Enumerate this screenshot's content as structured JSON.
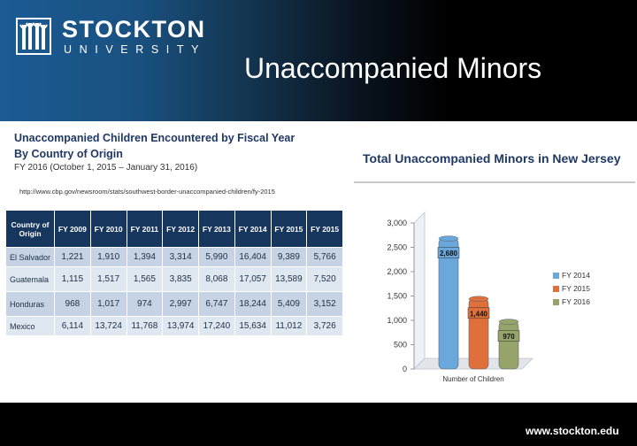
{
  "header": {
    "logo_name": "STOCKTON",
    "logo_sub": "UNIVERSITY",
    "title": "Unaccompanied Minors"
  },
  "table": {
    "heading": "Unaccompanied Children Encountered by Fiscal Year",
    "subheading": "By Country of Origin",
    "period": "FY 2016 (October 1, 2015 – January 31, 2016)",
    "source": "http://www.cbp.gov/newsroom/stats/southwest-border-unaccompanied-children/fy-2015",
    "country_header": "Country of Origin",
    "headers": [
      "FY 2009",
      "FY 2010",
      "FY 2011",
      "FY 2012",
      "FY 2013",
      "FY 2014",
      "FY 2015",
      "FY 2015"
    ],
    "rows": [
      {
        "country": "El Salvador",
        "values": [
          "1,221",
          "1,910",
          "1,394",
          "3,314",
          "5,990",
          "16,404",
          "9,389",
          "5,766"
        ]
      },
      {
        "country": "Guatemala",
        "values": [
          "1,115",
          "1,517",
          "1,565",
          "3,835",
          "8,068",
          "17,057",
          "13,589",
          "7,520"
        ]
      },
      {
        "country": "Honduras",
        "values": [
          "968",
          "1,017",
          "974",
          "2,997",
          "6,747",
          "18,244",
          "5,409",
          "3,152"
        ]
      },
      {
        "country": "Mexico",
        "values": [
          "6,114",
          "13,724",
          "11,768",
          "13,974",
          "17,240",
          "15,634",
          "11,012",
          "3,726"
        ]
      }
    ]
  },
  "chart_data": {
    "type": "bar",
    "title": "Total Unaccompanied Minors in New Jersey",
    "categories": [
      "Number of Children"
    ],
    "xlabel": "Number of Children",
    "ylabel": "",
    "ylim": [
      0,
      3000
    ],
    "yticks": [
      0,
      500,
      1000,
      1500,
      2000,
      2500,
      3000
    ],
    "ytick_labels": [
      "0",
      "500",
      "1,000",
      "1,500",
      "2,000",
      "2,500",
      "3,000"
    ],
    "series": [
      {
        "name": "FY 2014",
        "values": [
          2680
        ],
        "label": "2,680",
        "color": "#6aa7da"
      },
      {
        "name": "FY 2015",
        "values": [
          1440
        ],
        "label": "1,440",
        "color": "#e0703b"
      },
      {
        "name": "FY 2016",
        "values": [
          970
        ],
        "label": "970",
        "color": "#96a36a"
      }
    ],
    "legend_position": "right"
  },
  "footer": {
    "url": "www.stockton.edu"
  }
}
